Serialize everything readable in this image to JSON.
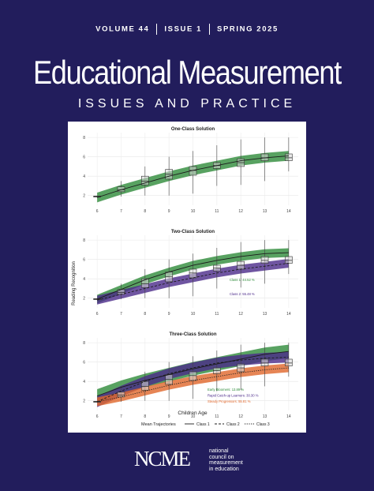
{
  "cover": {
    "issue_info": [
      "VOLUME 44",
      "ISSUE 1",
      "SPRING 2025"
    ],
    "title": "Educational Measurement",
    "subtitle": "ISSUES AND PRACTICE",
    "logo": {
      "wordmark": "NCME",
      "tagline": [
        "national",
        "council on",
        "measurement",
        "in education"
      ]
    }
  },
  "figure": {
    "ylabel": "Reading Recognition",
    "xlabel": "Children Age",
    "legend_title": "Mean Trajectories",
    "legend": [
      {
        "name": "Class 1",
        "color": "#2e8b3a",
        "style": "solid"
      },
      {
        "name": "Class 2",
        "color": "#4b2a8a",
        "style": "dashed"
      },
      {
        "name": "Class 3",
        "color": "#e0662a",
        "style": "dotted"
      }
    ]
  },
  "chart_data": [
    {
      "type": "line",
      "title": "One-Class Solution",
      "x": [
        6,
        7,
        8,
        9,
        10,
        11,
        12,
        13,
        14
      ],
      "ylim": [
        1,
        8.5
      ],
      "yticks": [
        2,
        4,
        6,
        8
      ],
      "boxes": {
        "median": [
          1.9,
          2.6,
          3.5,
          4.2,
          4.6,
          5.1,
          5.4,
          5.9,
          5.9
        ],
        "q1": [
          1.85,
          2.4,
          3.1,
          3.7,
          4.1,
          4.8,
          5.0,
          5.6,
          5.6
        ],
        "q3": [
          1.95,
          2.9,
          4.0,
          4.7,
          5.0,
          5.4,
          5.8,
          6.3,
          6.3
        ],
        "min": [
          1.8,
          1.9,
          2.0,
          2.0,
          2.2,
          3.0,
          3.1,
          3.5,
          4.5
        ],
        "max": [
          2.0,
          3.5,
          5.0,
          6.0,
          6.6,
          7.2,
          7.8,
          8.0,
          8.0
        ]
      },
      "series": [
        {
          "class": "Class 1",
          "values": [
            1.8,
            2.6,
            3.3,
            4.0,
            4.6,
            5.1,
            5.6,
            5.9,
            6.1
          ],
          "band": 0.5
        }
      ],
      "annotations": []
    },
    {
      "type": "line",
      "title": "Two-Class Solution",
      "x": [
        6,
        7,
        8,
        9,
        10,
        11,
        12,
        13,
        14
      ],
      "ylim": [
        1,
        8.5
      ],
      "yticks": [
        2,
        4,
        6,
        8
      ],
      "boxes": {
        "median": [
          1.9,
          2.6,
          3.5,
          4.2,
          4.6,
          5.1,
          5.4,
          5.9,
          5.9
        ],
        "q1": [
          1.85,
          2.4,
          3.1,
          3.7,
          4.1,
          4.8,
          5.0,
          5.6,
          5.6
        ],
        "q3": [
          1.95,
          2.9,
          4.0,
          4.7,
          5.0,
          5.4,
          5.8,
          6.3,
          6.3
        ],
        "min": [
          1.8,
          1.9,
          2.0,
          2.0,
          2.2,
          3.0,
          3.1,
          3.5,
          4.5
        ],
        "max": [
          2.0,
          3.5,
          5.0,
          6.0,
          6.6,
          7.2,
          7.8,
          8.0,
          8.0
        ]
      },
      "series": [
        {
          "class": "Class 1",
          "values": [
            1.9,
            2.9,
            3.9,
            4.7,
            5.4,
            5.9,
            6.3,
            6.6,
            6.7
          ],
          "band": 0.45
        },
        {
          "class": "Class 2",
          "values": [
            1.8,
            2.4,
            3.0,
            3.6,
            4.1,
            4.6,
            5.0,
            5.3,
            5.6
          ],
          "band": 0.45
        }
      ],
      "annotations": [
        {
          "text": "Class 1: 44.52 %",
          "color": "#2e8b3a",
          "row": 0
        },
        {
          "text": "Class 2: 55.48 %",
          "color": "#4b2a8a",
          "row": 1
        }
      ]
    },
    {
      "type": "line",
      "title": "Three-Class Solution",
      "x": [
        6,
        7,
        8,
        9,
        10,
        11,
        12,
        13,
        14
      ],
      "ylim": [
        1,
        8.5
      ],
      "yticks": [
        2,
        4,
        6,
        8
      ],
      "boxes": {
        "median": [
          1.9,
          2.6,
          3.5,
          4.2,
          4.6,
          5.1,
          5.4,
          5.9,
          5.9
        ],
        "q1": [
          1.85,
          2.4,
          3.1,
          3.7,
          4.1,
          4.8,
          5.0,
          5.6,
          5.6
        ],
        "q3": [
          1.95,
          2.9,
          4.0,
          4.7,
          5.0,
          5.4,
          5.8,
          6.3,
          6.3
        ],
        "min": [
          1.8,
          1.9,
          2.0,
          2.0,
          2.2,
          3.0,
          3.1,
          3.5,
          4.5
        ],
        "max": [
          2.0,
          3.5,
          5.0,
          6.0,
          6.6,
          7.2,
          7.8,
          8.0,
          8.0
        ]
      },
      "series": [
        {
          "class": "Class 1",
          "values": [
            2.5,
            3.4,
            4.1,
            4.7,
            5.3,
            5.8,
            6.3,
            6.8,
            7.1
          ],
          "band": 0.7
        },
        {
          "class": "Class 2",
          "values": [
            1.9,
            3.0,
            4.0,
            4.8,
            5.4,
            5.9,
            6.2,
            6.4,
            6.5
          ],
          "band": 0.55
        },
        {
          "class": "Class 3",
          "values": [
            1.9,
            2.4,
            3.0,
            3.6,
            4.1,
            4.5,
            4.9,
            5.2,
            5.4
          ],
          "band": 0.45
        }
      ],
      "annotations": [
        {
          "text": "Early Bloomers: 13.89 %",
          "color": "#2e8b3a",
          "row": 0
        },
        {
          "text": "Rapid Catch-up Learners: 30.30 %",
          "color": "#4b2a8a",
          "row": 1
        },
        {
          "text": "Steady Progressors: 55.81 %",
          "color": "#e0662a",
          "row": 2
        }
      ]
    }
  ]
}
